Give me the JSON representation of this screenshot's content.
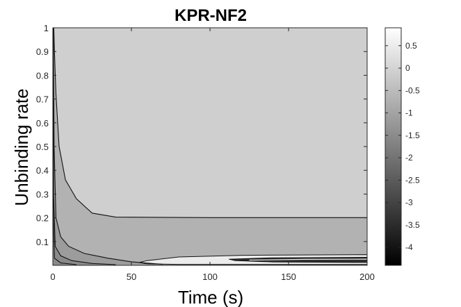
{
  "chart_data": {
    "type": "heatmap",
    "title": "KPR-NF2",
    "xlabel": "Time (s)",
    "ylabel": "Unbinding rate",
    "xlim": [
      0,
      200
    ],
    "ylim": [
      0,
      1
    ],
    "x_ticks": [
      "0",
      "50",
      "100",
      "150",
      "200"
    ],
    "y_ticks": [
      "0.1",
      "0.2",
      "0.3",
      "0.4",
      "0.5",
      "0.6",
      "0.7",
      "0.8",
      "0.9",
      "1"
    ],
    "colormap": "gray",
    "colorbar": {
      "range": [
        -4.4,
        0.9
      ],
      "ticks": [
        "0.5",
        "0",
        "-0.5",
        "-1",
        "-1.5",
        "-2",
        "-2.5",
        "-3",
        "-3.5",
        "-4"
      ]
    },
    "grid": false,
    "regions": [
      {
        "level": -0.5,
        "color": "#cfcfcf",
        "description": "upper plateau (unbinding rate above ~0.2)"
      },
      {
        "level": -1.0,
        "color": "#b2b2b2",
        "description": "band between ~0.05 and 0.2"
      },
      {
        "level": -1.5,
        "color": "#9c9c9c",
        "description": "low region near the bottom axis"
      },
      {
        "level": -2.0,
        "color": "#8a8a8a",
        "description": "thin strip along x axis at early times"
      },
      {
        "level": 0.5,
        "color": "#ececec",
        "description": "light lens at unbinding rate ~0.02 for time > 55 s"
      },
      {
        "level": -3.5,
        "color": "#303030",
        "description": "dark band at unbinding rate ~0.015-0.03 for time > 115 s"
      }
    ],
    "contours": [
      {
        "level": "upper boundary",
        "points": [
          [
            0.6,
            1.0
          ],
          [
            1,
            0.9
          ],
          [
            2,
            0.72
          ],
          [
            4,
            0.5
          ],
          [
            8,
            0.36
          ],
          [
            15,
            0.28
          ],
          [
            25,
            0.22
          ],
          [
            40,
            0.203
          ],
          [
            100,
            0.201
          ],
          [
            200,
            0.201
          ]
        ]
      },
      {
        "level": "middle boundary",
        "points": [
          [
            0.3,
            1.0
          ],
          [
            0.8,
            0.5
          ],
          [
            2,
            0.2
          ],
          [
            5,
            0.12
          ],
          [
            10,
            0.08
          ],
          [
            20,
            0.05
          ],
          [
            35,
            0.03
          ],
          [
            50,
            0.015
          ],
          [
            70,
            0.004
          ]
        ]
      },
      {
        "level": "lower boundary",
        "points": [
          [
            0.2,
            1.0
          ],
          [
            0.5,
            0.3
          ],
          [
            1.5,
            0.08
          ],
          [
            5,
            0.04
          ],
          [
            12,
            0.02
          ],
          [
            25,
            0.008
          ],
          [
            40,
            0.003
          ]
        ]
      },
      {
        "level": "bottom boundary",
        "points": [
          [
            0.1,
            1.0
          ],
          [
            0.3,
            0.2
          ],
          [
            1,
            0.03
          ],
          [
            5,
            0.01
          ],
          [
            15,
            0.003
          ]
        ]
      }
    ]
  }
}
